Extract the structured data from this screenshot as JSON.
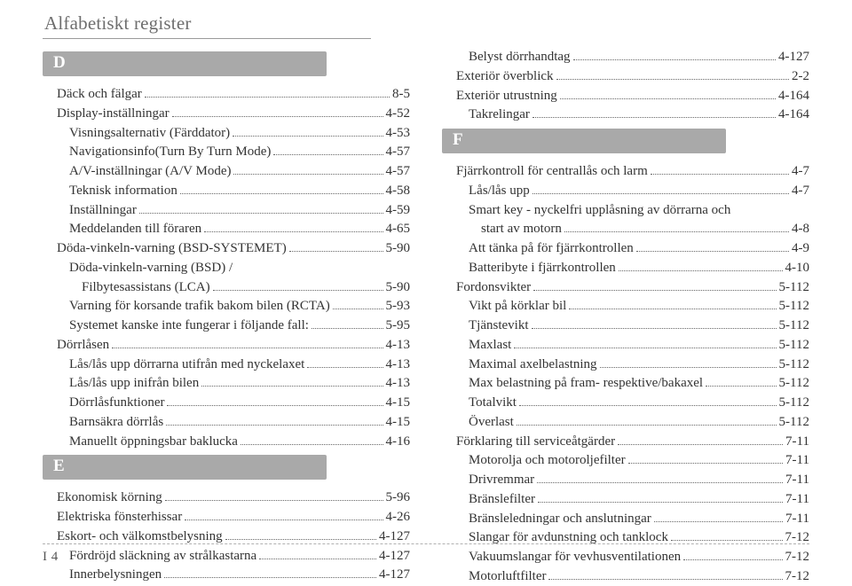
{
  "header": {
    "title": "Alfabetiskt register"
  },
  "left": [
    {
      "letter": "D",
      "entries": [
        {
          "label": "Däck och fälgar",
          "page": "8-5",
          "indent": 0
        },
        {
          "label": "Display-inställningar",
          "page": "4-52",
          "indent": 0
        },
        {
          "label": "Visningsalternativ (Färddator)",
          "page": "4-53",
          "indent": 1
        },
        {
          "label": "Navigationsinfo(Turn By Turn Mode)",
          "page": "4-57",
          "indent": 1
        },
        {
          "label": "A/V-inställningar (A/V Mode)",
          "page": "4-57",
          "indent": 1
        },
        {
          "label": "Teknisk information",
          "page": "4-58",
          "indent": 1
        },
        {
          "label": "Inställningar",
          "page": "4-59",
          "indent": 1
        },
        {
          "label": "Meddelanden till föraren",
          "page": "4-65",
          "indent": 1
        },
        {
          "label": "Döda-vinkeln-varning (BSD-SYSTEMET)",
          "page": "5-90",
          "indent": 0
        },
        {
          "label": "Döda-vinkeln-varning (BSD) /",
          "page": "",
          "indent": 1,
          "nopage": true
        },
        {
          "label": "Filbytesassistans (LCA)",
          "page": "5-90",
          "indent": 2
        },
        {
          "label": "Varning för korsande trafik bakom bilen (RCTA)",
          "page": "5-93",
          "indent": 1
        },
        {
          "label": "Systemet kanske inte fungerar i följande fall:",
          "page": "5-95",
          "indent": 1
        },
        {
          "label": "Dörrlåsen",
          "page": "4-13",
          "indent": 0
        },
        {
          "label": "Lås/lås upp dörrarna utifrån med nyckelaxet",
          "page": "4-13",
          "indent": 1
        },
        {
          "label": "Lås/lås upp inifrån bilen",
          "page": "4-13",
          "indent": 1
        },
        {
          "label": "Dörrlåsfunktioner",
          "page": "4-15",
          "indent": 1
        },
        {
          "label": "Barnsäkra dörrlås",
          "page": "4-15",
          "indent": 1
        },
        {
          "label": "Manuellt öppningsbar baklucka",
          "page": "4-16",
          "indent": 1
        }
      ]
    },
    {
      "letter": "E",
      "entries": [
        {
          "label": "Ekonomisk körning",
          "page": "5-96",
          "indent": 0
        },
        {
          "label": "Elektriska fönsterhissar",
          "page": "4-26",
          "indent": 0
        },
        {
          "label": "Eskort- och välkomstbelysning",
          "page": "4-127",
          "indent": 0
        },
        {
          "label": "Fördröjd släckning av strålkastarna",
          "page": "4-127",
          "indent": 1
        },
        {
          "label": "Innerbelysningen",
          "page": "4-127",
          "indent": 1
        }
      ]
    }
  ],
  "right": [
    {
      "letter": "",
      "entries": [
        {
          "label": "Belyst dörrhandtag",
          "page": "4-127",
          "indent": 1
        },
        {
          "label": "Exteriör överblick",
          "page": "2-2",
          "indent": 0
        },
        {
          "label": "Exteriör utrustning",
          "page": "4-164",
          "indent": 0
        },
        {
          "label": "Takrelingar",
          "page": "4-164",
          "indent": 1
        }
      ]
    },
    {
      "letter": "F",
      "entries": [
        {
          "label": "Fjärrkontroll för centrallås och larm",
          "page": "4-7",
          "indent": 0
        },
        {
          "label": "Lås/lås upp",
          "page": "4-7",
          "indent": 1
        },
        {
          "label": "Smart key - nyckelfri upplåsning av dörrarna och",
          "page": "",
          "indent": 1,
          "nopage": true
        },
        {
          "label": "start av motorn",
          "page": "4-8",
          "indent": 2
        },
        {
          "label": "Att tänka på för fjärrkontrollen",
          "page": "4-9",
          "indent": 1
        },
        {
          "label": "Batteribyte i fjärrkontrollen",
          "page": "4-10",
          "indent": 1
        },
        {
          "label": "Fordonsvikter",
          "page": "5-112",
          "indent": 0
        },
        {
          "label": "Vikt på körklar bil",
          "page": "5-112",
          "indent": 1
        },
        {
          "label": "Tjänstevikt",
          "page": "5-112",
          "indent": 1
        },
        {
          "label": "Maxlast",
          "page": "5-112",
          "indent": 1
        },
        {
          "label": "Maximal axelbelastning",
          "page": "5-112",
          "indent": 1
        },
        {
          "label": "Max belastning på fram- respektive/bakaxel",
          "page": "5-112",
          "indent": 1
        },
        {
          "label": "Totalvikt",
          "page": "5-112",
          "indent": 1
        },
        {
          "label": "Överlast",
          "page": "5-112",
          "indent": 1
        },
        {
          "label": "Förklaring till serviceåtgärder",
          "page": "7-11",
          "indent": 0
        },
        {
          "label": "Motorolja och motoroljefilter",
          "page": "7-11",
          "indent": 1
        },
        {
          "label": "Drivremmar",
          "page": "7-11",
          "indent": 1
        },
        {
          "label": "Bränslefilter",
          "page": "7-11",
          "indent": 1
        },
        {
          "label": "Bränsleledningar och anslutningar",
          "page": "7-11",
          "indent": 1
        },
        {
          "label": "Slangar för avdunstning och tanklock",
          "page": "7-12",
          "indent": 1
        },
        {
          "label": "Vakuumslangar för vevhusventilationen",
          "page": "7-12",
          "indent": 1
        },
        {
          "label": "Motorluftfilter",
          "page": "7-12",
          "indent": 1
        }
      ]
    }
  ],
  "footer": {
    "page_label": "I 4"
  }
}
